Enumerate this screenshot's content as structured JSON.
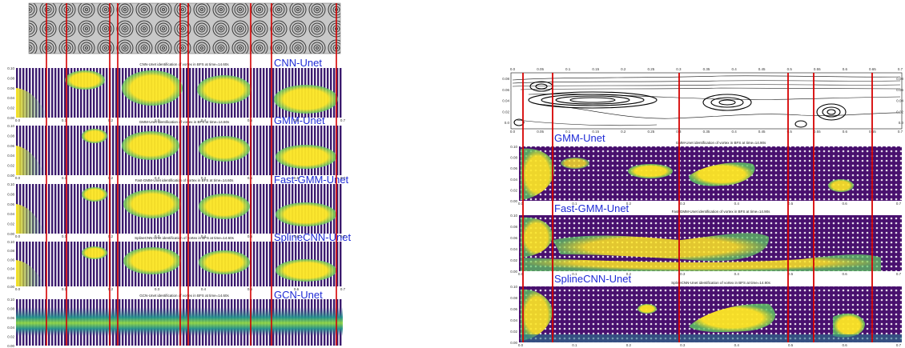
{
  "left_figure": {
    "panels": [
      {
        "label": "CNN-Unet",
        "title": "CNN-Unet identification of vortex in BFS at time=14.60s",
        "style": "stripes"
      },
      {
        "label": "GMM-Unet",
        "title": "GMM-Unet identification of vortex in BFS at time=14.60s",
        "style": "stripes"
      },
      {
        "label": "Fast-GMM-Unet",
        "title": "Fast-GMM-Unet identification of vortex in BFS at time=14.60s",
        "style": "stripes"
      },
      {
        "label": "SplineCNN-Unet",
        "title": "SplineCNN-Unet identification of vortex in BFS at time=14.60s",
        "style": "stripes"
      },
      {
        "label": "GCN-Unet",
        "title": "GCN-Unet identification of vortex in BFS at time=14.60s",
        "style": "stripes"
      }
    ],
    "y_ticks": [
      "0.10",
      "0.08",
      "0.06",
      "0.04",
      "0.02",
      "0.00"
    ],
    "x_ticks": [
      "0.0",
      "0.1",
      "0.2",
      "0.3",
      "0.4",
      "0.5",
      "0.6",
      "0.7"
    ]
  },
  "right_figure": {
    "streamline_top_ticks": [
      "0.0",
      "0.05",
      "0.1",
      "0.15",
      "0.2",
      "0.25",
      "0.3",
      "0.35",
      "0.4",
      "0.45",
      "0.5",
      "0.55",
      "0.6",
      "0.65",
      "0.7"
    ],
    "streamline_y_ticks": [
      "0.08",
      "0.06",
      "0.04",
      "0.02",
      "0.0"
    ],
    "panels": [
      {
        "label": "GMM-Unet",
        "title": "GMM-Unet identification of vortex in BFS at time=14.90s"
      },
      {
        "label": "Fast-GMM-Unet",
        "title": "Fast-GMM-Unet identification of vortex in BFS at time=14.90s"
      },
      {
        "label": "SplineCNN-Unet",
        "title": "SplineCNN-Unet identification of vortex in BFS at time=14.90s"
      }
    ],
    "y_ticks": [
      "0.10",
      "0.08",
      "0.06",
      "0.04",
      "0.02",
      "0.00"
    ],
    "x_ticks": [
      "0.0",
      "0.1",
      "0.2",
      "0.3",
      "0.4",
      "0.5",
      "0.6",
      "0.7"
    ]
  },
  "colors": {
    "label_blue": "#1f2bd6",
    "marker_red": "#d60000",
    "field_purple": "#440154",
    "field_teal": "#21918c",
    "field_yellow": "#fde725"
  }
}
